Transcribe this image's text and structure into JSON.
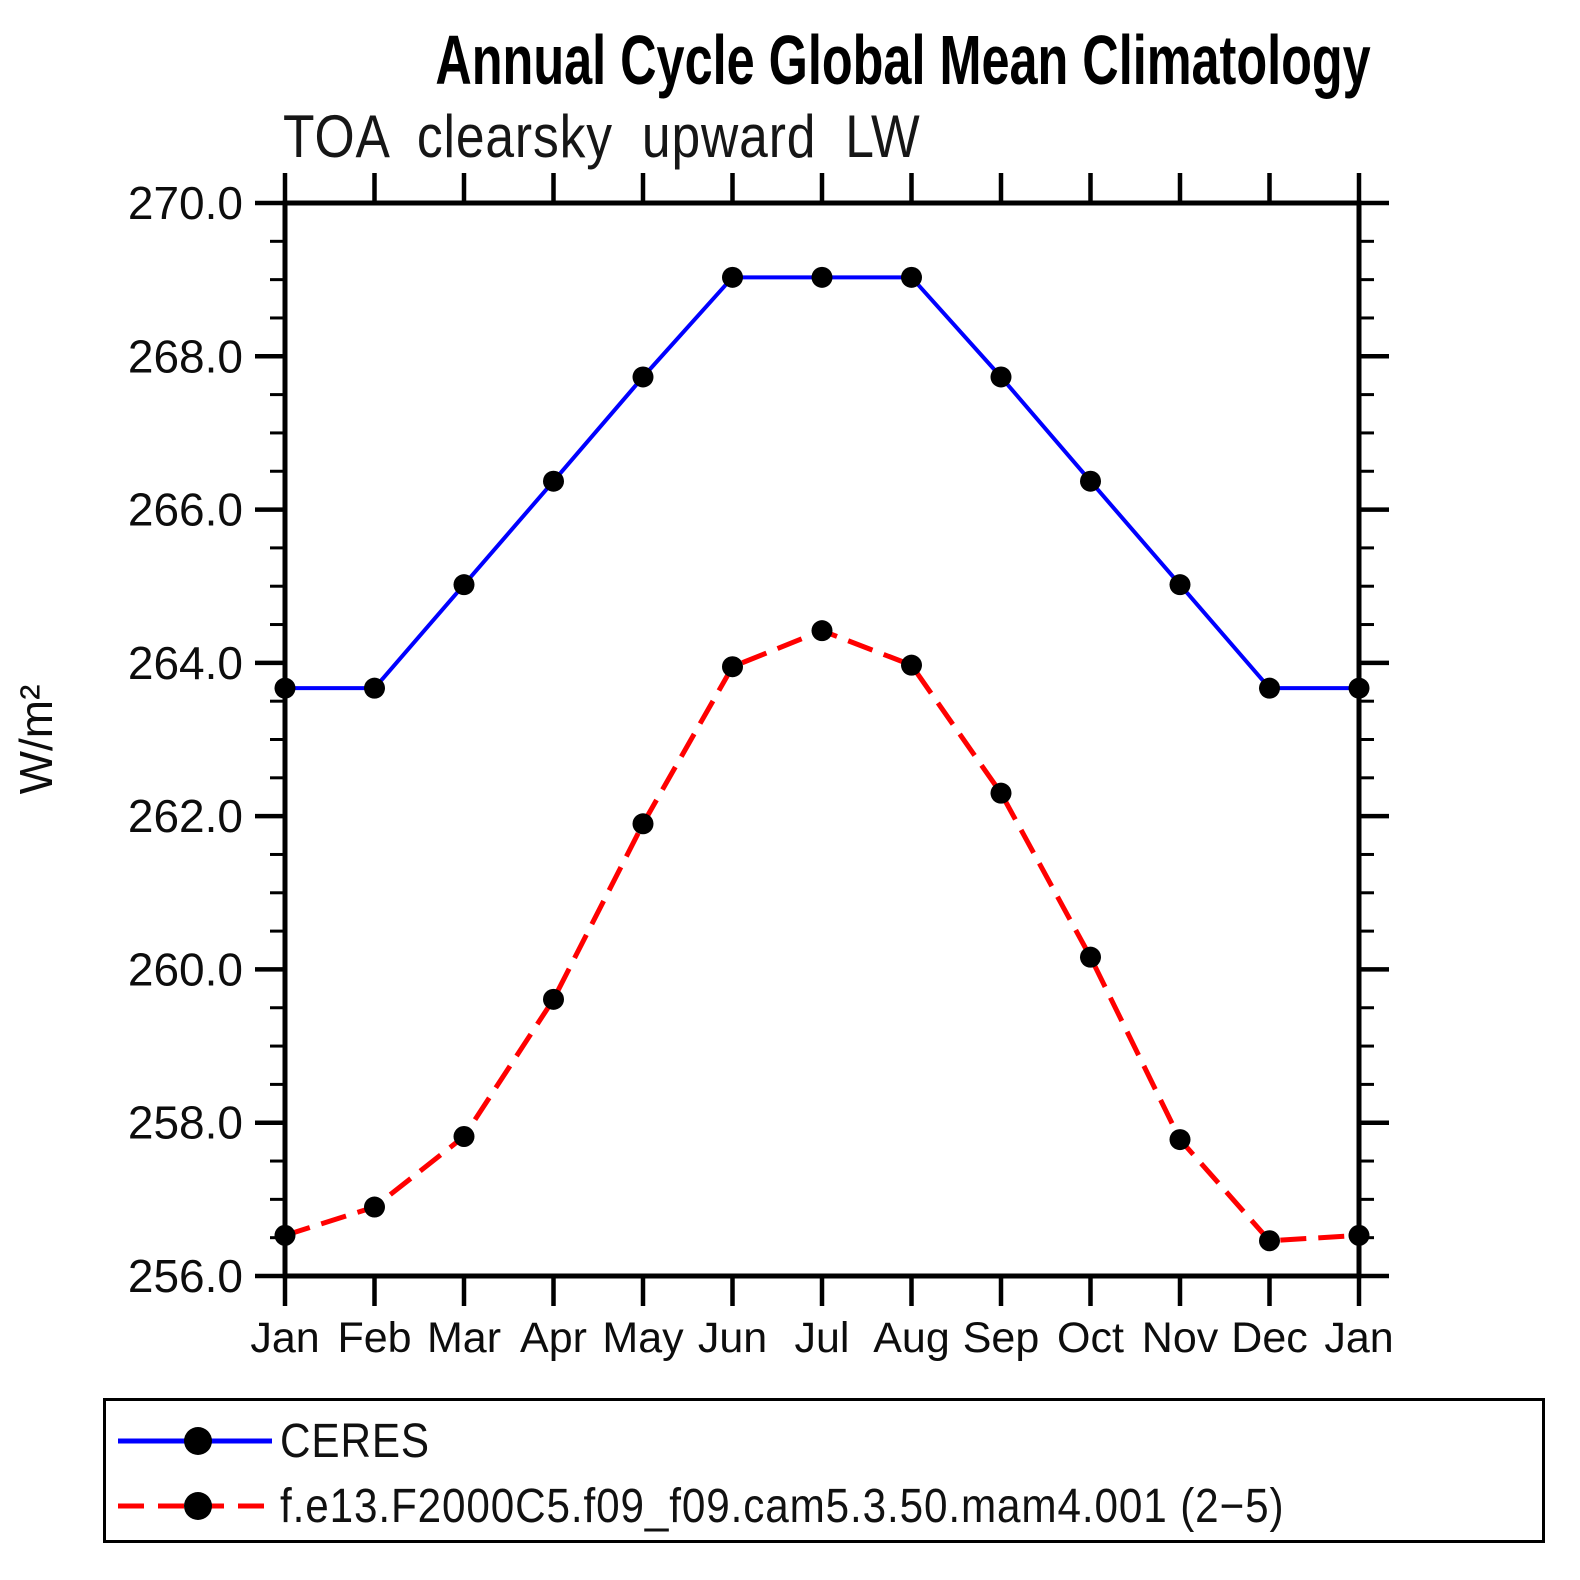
{
  "title": "Annual Cycle Global Mean Climatology",
  "subtitle": "TOA clearsky upward LW",
  "chart_data": {
    "type": "line",
    "title": "Annual Cycle Global Mean Climatology",
    "subtitle": "TOA clearsky upward LW",
    "ylabel": "W/m²",
    "xlabel": "",
    "categories": [
      "Jan",
      "Feb",
      "Mar",
      "Apr",
      "May",
      "Jun",
      "Jul",
      "Aug",
      "Sep",
      "Oct",
      "Nov",
      "Dec",
      "Jan"
    ],
    "series": [
      {
        "name": "CERES",
        "color": "#0000ff",
        "line_style": "solid",
        "marker": "filled-circle",
        "marker_color": "#000000",
        "values": [
          263.67,
          263.67,
          265.02,
          266.37,
          267.73,
          269.03,
          269.03,
          269.03,
          267.73,
          266.37,
          265.02,
          263.67,
          263.67
        ]
      },
      {
        "name": "f.e13.F2000C5.f09_f09.cam5.3.50.mam4.001 (2−5)",
        "color": "#ff0000",
        "line_style": "dashed",
        "marker": "filled-circle",
        "marker_color": "#000000",
        "values": [
          256.53,
          256.9,
          257.82,
          259.61,
          261.9,
          263.95,
          264.42,
          263.97,
          262.3,
          260.16,
          257.78,
          256.46,
          256.53
        ]
      }
    ],
    "ylim": [
      256.0,
      270.0
    ],
    "ytick_step": 2.0,
    "yminor_step": 0.5,
    "ytick_labels": [
      "256.0",
      "258.0",
      "260.0",
      "262.0",
      "264.0",
      "266.0",
      "268.0",
      "270.0"
    ],
    "axis_color": "#000000",
    "background_color": "#ffffff",
    "grid": false,
    "legend_position": "bottom"
  }
}
